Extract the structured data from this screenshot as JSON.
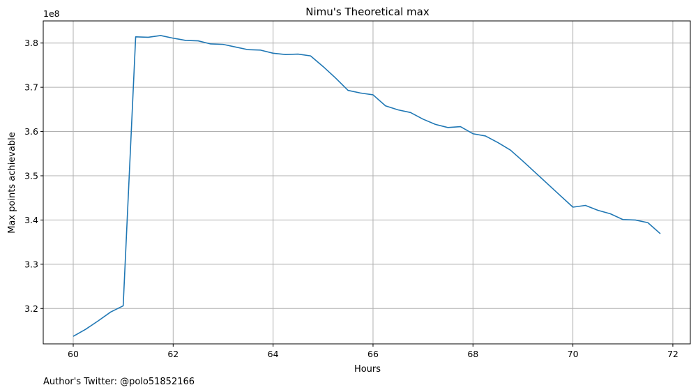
{
  "chart_data": {
    "type": "line",
    "title": "Nimu's Theoretical max",
    "xlabel": "Hours",
    "ylabel": "Max points achievable",
    "y_offset_label": "1e8",
    "footer": "Author's Twitter: @polo51852166",
    "xlim": [
      59.4,
      72.35
    ],
    "ylim": [
      3.12,
      3.85
    ],
    "x_ticks": [
      60,
      62,
      64,
      66,
      68,
      70,
      72
    ],
    "y_ticks": [
      3.2,
      3.3,
      3.4,
      3.5,
      3.6,
      3.7,
      3.8
    ],
    "grid": true,
    "line_color": "#1f77b4",
    "series": [
      {
        "x": [
          60.0,
          60.25,
          60.5,
          60.75,
          61.0,
          61.25,
          61.5,
          61.75,
          62.0,
          62.25,
          62.5,
          62.75,
          63.0,
          63.25,
          63.5,
          63.75,
          64.0,
          64.25,
          64.5,
          64.75,
          65.0,
          65.25,
          65.5,
          65.75,
          66.0,
          66.25,
          66.5,
          66.75,
          67.0,
          67.25,
          67.5,
          67.75,
          68.0,
          68.25,
          68.5,
          68.75,
          69.0,
          69.25,
          69.5,
          69.75,
          70.0,
          70.25,
          70.5,
          70.75,
          71.0,
          71.25,
          71.5,
          71.75
        ],
        "values": [
          3.137,
          3.153,
          3.172,
          3.192,
          3.206,
          3.814,
          3.813,
          3.817,
          3.811,
          3.806,
          3.805,
          3.798,
          3.797,
          3.791,
          3.785,
          3.784,
          3.777,
          3.774,
          3.775,
          3.771,
          3.747,
          3.721,
          3.693,
          3.687,
          3.683,
          3.658,
          3.649,
          3.643,
          3.628,
          3.616,
          3.609,
          3.611,
          3.595,
          3.59,
          3.575,
          3.558,
          3.533,
          3.507,
          3.481,
          3.455,
          3.429,
          3.433,
          3.422,
          3.414,
          3.401,
          3.4,
          3.394,
          3.369
        ]
      }
    ]
  }
}
